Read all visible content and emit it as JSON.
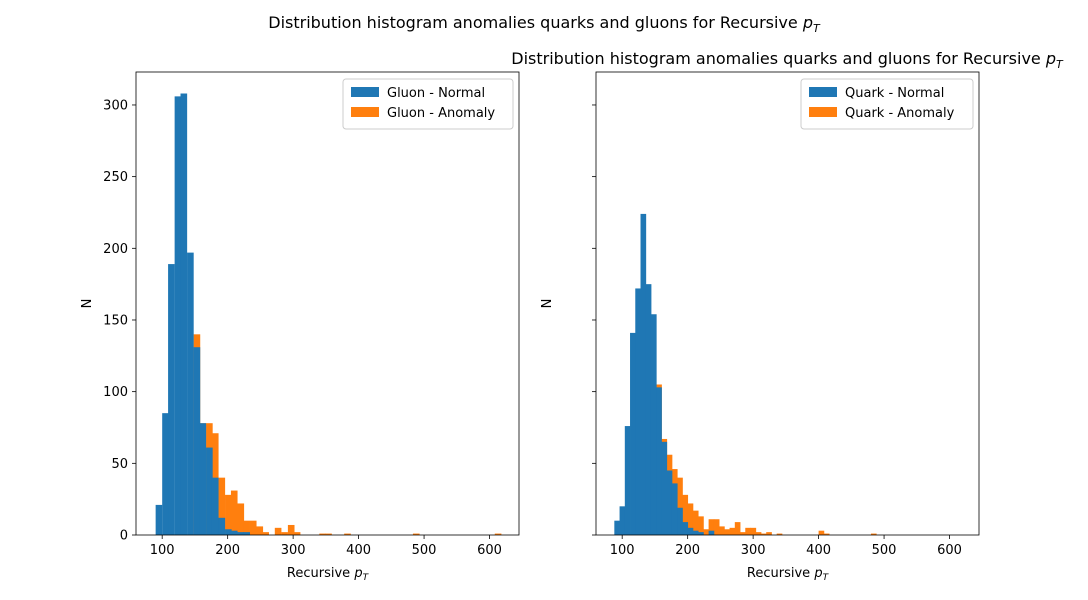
{
  "figure": {
    "suptitle": "Distribution histogram anomalies quarks and gluons for Recursive",
    "pt_symbol": "p",
    "pt_subscript": "T"
  },
  "colors": {
    "normal": "#1f77b4",
    "anomaly": "#ff7f0e"
  },
  "chart_data": [
    {
      "type": "bar",
      "title": "",
      "xlabel": "Recursive",
      "ylabel": "N",
      "xlim": [
        60,
        645
      ],
      "ylim": [
        0,
        323
      ],
      "xticks": [
        100,
        200,
        300,
        400,
        500,
        600
      ],
      "yticks": [
        0,
        50,
        100,
        150,
        200,
        250,
        300
      ],
      "legend_position": "upper right",
      "bin_width": 9.5,
      "series": [
        {
          "name": "Gluon - Normal",
          "color": "#1f77b4",
          "bins": [
            {
              "x0": 90,
              "top": 21
            },
            {
              "x0": 100,
              "top": 85
            },
            {
              "x0": 109,
              "top": 189
            },
            {
              "x0": 119,
              "top": 306
            },
            {
              "x0": 128,
              "top": 308
            },
            {
              "x0": 138,
              "top": 197
            },
            {
              "x0": 148,
              "top": 131
            },
            {
              "x0": 157,
              "top": 78
            },
            {
              "x0": 167,
              "top": 61
            },
            {
              "x0": 176,
              "top": 40
            },
            {
              "x0": 186,
              "top": 12
            },
            {
              "x0": 196,
              "top": 4
            },
            {
              "x0": 205,
              "top": 3
            },
            {
              "x0": 215,
              "top": 2
            },
            {
              "x0": 224,
              "top": 2
            }
          ]
        },
        {
          "name": "Gluon - Anomaly",
          "color": "#ff7f0e",
          "bins": [
            {
              "x0": 148,
              "top": 140
            },
            {
              "x0": 157,
              "top": 78
            },
            {
              "x0": 167,
              "top": 78
            },
            {
              "x0": 176,
              "top": 71
            },
            {
              "x0": 186,
              "top": 40
            },
            {
              "x0": 196,
              "top": 28
            },
            {
              "x0": 205,
              "top": 31
            },
            {
              "x0": 215,
              "top": 22
            },
            {
              "x0": 224,
              "top": 10
            },
            {
              "x0": 234,
              "top": 10
            },
            {
              "x0": 244,
              "top": 6
            },
            {
              "x0": 253,
              "top": 2
            },
            {
              "x0": 272,
              "top": 5
            },
            {
              "x0": 282,
              "top": 2
            },
            {
              "x0": 292,
              "top": 7
            },
            {
              "x0": 301,
              "top": 2
            },
            {
              "x0": 340,
              "top": 1
            },
            {
              "x0": 349,
              "top": 1
            },
            {
              "x0": 378,
              "top": 1
            },
            {
              "x0": 483,
              "top": 1
            },
            {
              "x0": 608,
              "top": 1
            }
          ]
        }
      ]
    },
    {
      "type": "bar",
      "title": "Distribution histogram anomalies quarks and gluons for Recursive",
      "xlabel": "Recursive",
      "ylabel": "N",
      "xlim": [
        60,
        645
      ],
      "ylim": [
        0,
        323
      ],
      "xticks": [
        100,
        200,
        300,
        400,
        500,
        600
      ],
      "yticks": [
        0,
        50,
        100,
        150,
        200,
        250,
        300
      ],
      "legend_position": "upper right",
      "bin_width": 8,
      "series": [
        {
          "name": "Quark - Normal",
          "color": "#1f77b4",
          "bins": [
            {
              "x0": 88,
              "top": 10
            },
            {
              "x0": 96,
              "top": 20
            },
            {
              "x0": 104,
              "top": 76
            },
            {
              "x0": 112,
              "top": 141
            },
            {
              "x0": 120,
              "top": 172
            },
            {
              "x0": 128,
              "top": 224
            },
            {
              "x0": 136,
              "top": 175
            },
            {
              "x0": 144,
              "top": 154
            },
            {
              "x0": 152,
              "top": 103
            },
            {
              "x0": 160,
              "top": 65
            },
            {
              "x0": 168,
              "top": 45
            },
            {
              "x0": 176,
              "top": 36
            },
            {
              "x0": 184,
              "top": 19
            },
            {
              "x0": 192,
              "top": 9
            },
            {
              "x0": 200,
              "top": 5
            },
            {
              "x0": 208,
              "top": 3
            },
            {
              "x0": 216,
              "top": 2
            },
            {
              "x0": 232,
              "top": 3
            }
          ]
        },
        {
          "name": "Quark - Anomaly",
          "color": "#ff7f0e",
          "bins": [
            {
              "x0": 152,
              "top": 105
            },
            {
              "x0": 160,
              "top": 67
            },
            {
              "x0": 168,
              "top": 56
            },
            {
              "x0": 176,
              "top": 46
            },
            {
              "x0": 184,
              "top": 40
            },
            {
              "x0": 192,
              "top": 28
            },
            {
              "x0": 200,
              "top": 22
            },
            {
              "x0": 208,
              "top": 17
            },
            {
              "x0": 216,
              "top": 13
            },
            {
              "x0": 224,
              "top": 4
            },
            {
              "x0": 232,
              "top": 11
            },
            {
              "x0": 240,
              "top": 11
            },
            {
              "x0": 248,
              "top": 6
            },
            {
              "x0": 256,
              "top": 4
            },
            {
              "x0": 264,
              "top": 5
            },
            {
              "x0": 272,
              "top": 9
            },
            {
              "x0": 280,
              "top": 2
            },
            {
              "x0": 288,
              "top": 5
            },
            {
              "x0": 296,
              "top": 5
            },
            {
              "x0": 304,
              "top": 2
            },
            {
              "x0": 312,
              "top": 1
            },
            {
              "x0": 320,
              "top": 2
            },
            {
              "x0": 336,
              "top": 1
            },
            {
              "x0": 400,
              "top": 3
            },
            {
              "x0": 408,
              "top": 1
            },
            {
              "x0": 480,
              "top": 1
            }
          ]
        }
      ]
    }
  ]
}
